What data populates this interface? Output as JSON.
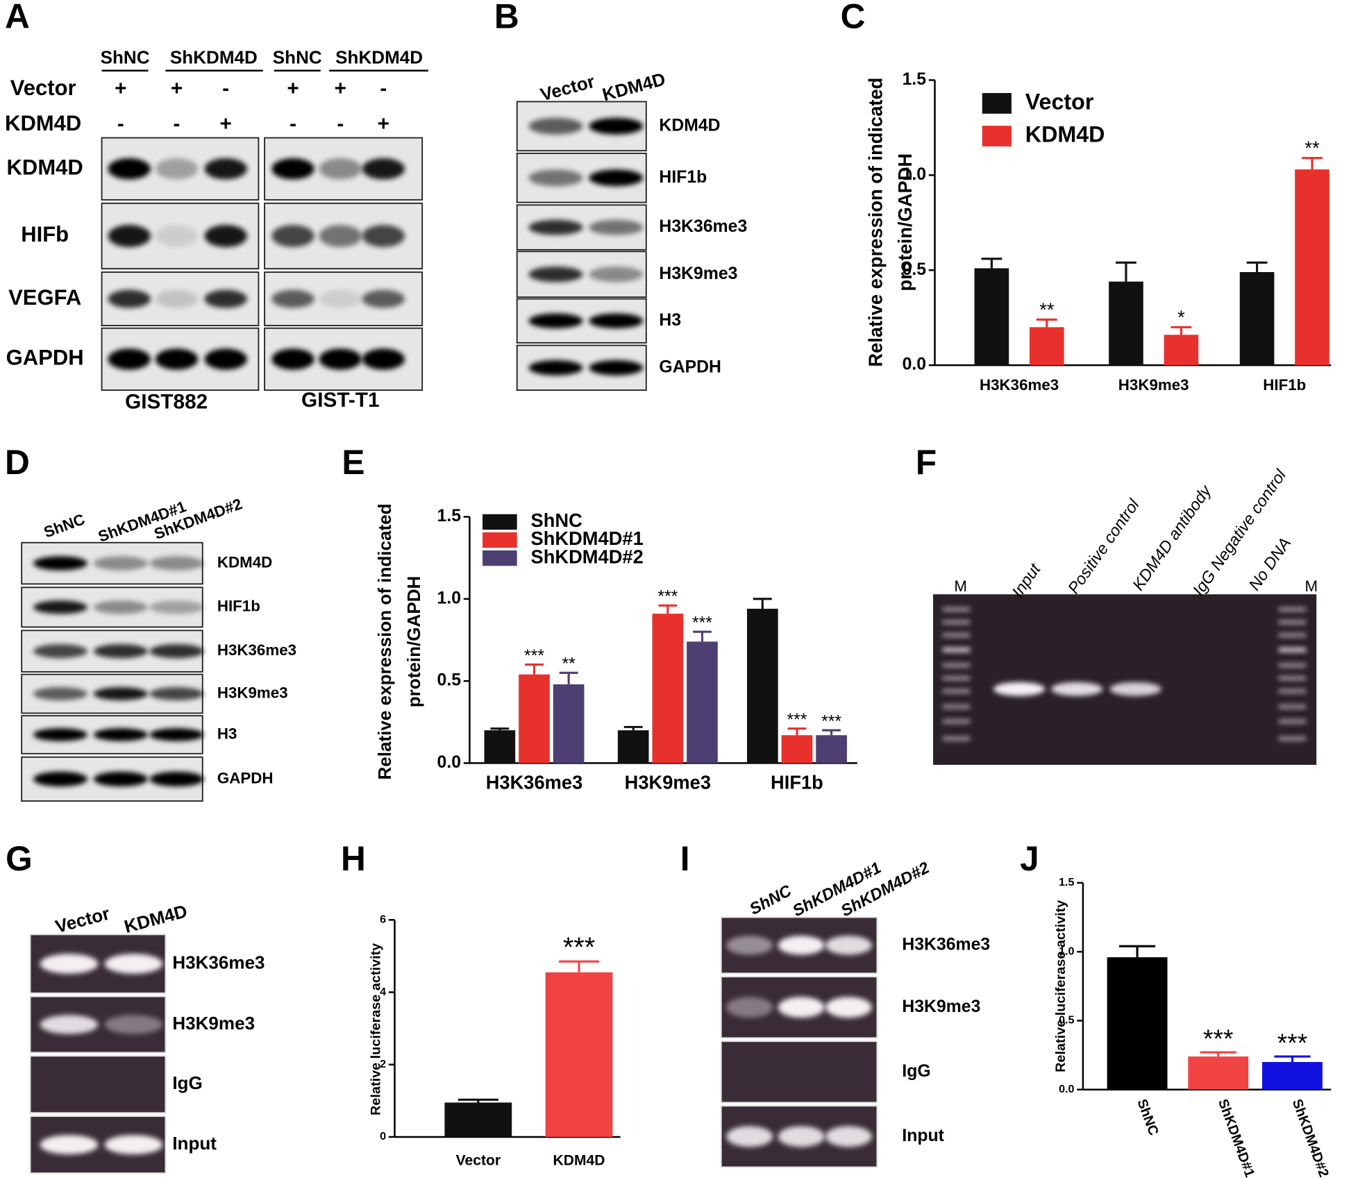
{
  "panel_labels": [
    "A",
    "B",
    "C",
    "D",
    "E",
    "F",
    "G",
    "H",
    "I",
    "J"
  ],
  "blots": {
    "A": {
      "headers": [
        "ShNC",
        "ShKDM4D",
        "ShNC",
        "ShKDM4D"
      ],
      "rows": [
        {
          "label": "Vector",
          "signs": [
            "+",
            "+",
            "-",
            "+",
            "+",
            "-"
          ]
        },
        {
          "label": "KDM4D",
          "signs": [
            "-",
            "-",
            "+",
            "-",
            "-",
            "+"
          ]
        }
      ],
      "blot_labels": [
        "KDM4D",
        "HIFb",
        "VEGFA",
        "GAPDH"
      ],
      "cell_lines": [
        "GIST882",
        "GIST-T1"
      ]
    },
    "B": {
      "lanes": [
        "Vector",
        "KDM4D"
      ],
      "blot_labels": [
        "KDM4D",
        "HIF1b",
        "H3K36me3",
        "H3K9me3",
        "H3",
        "GAPDH"
      ]
    },
    "D": {
      "lanes": [
        "ShNC",
        "ShKDM4D#1",
        "ShKDM4D#2"
      ],
      "blot_labels": [
        "KDM4D",
        "HIF1b",
        "H3K36me3",
        "H3K9me3",
        "H3",
        "GAPDH"
      ]
    },
    "F": {
      "markers": [
        "M",
        "M"
      ],
      "lanes": [
        "Input",
        "Positive control",
        "KDM4D antibody",
        "IgG Negative control",
        "No DNA"
      ]
    },
    "G": {
      "lanes": [
        "Vector",
        "KDM4D"
      ],
      "blot_labels": [
        "H3K36me3",
        "H3K9me3",
        "IgG",
        "Input"
      ]
    },
    "I": {
      "lanes": [
        "ShNC",
        "ShKDM4D#1",
        "ShKDM4D#2"
      ],
      "blot_labels": [
        "H3K36me3",
        "H3K9me3",
        "IgG",
        "Input"
      ]
    }
  },
  "chart_data": [
    {
      "type": "bar",
      "ylabel": [
        "Relative expression of indicated",
        "protein/GAPDH"
      ],
      "categories": [
        "H3K36me3",
        "H3K9me3",
        "HIF1b"
      ],
      "series": [
        {
          "name": "Vector",
          "color": "#111111",
          "values": [
            0.51,
            0.44,
            0.49
          ],
          "errors": [
            0.05,
            0.1,
            0.05
          ]
        },
        {
          "name": "KDM4D",
          "color": "#e8312c",
          "values": [
            0.2,
            0.16,
            1.03
          ],
          "errors": [
            0.04,
            0.04,
            0.06
          ],
          "annotations": [
            "**",
            "*",
            "**"
          ]
        }
      ],
      "ylim": [
        0,
        1.5
      ],
      "yticks": [
        {
          "value": 0,
          "label": "0.0"
        },
        0.5,
        {
          "value": 1,
          "label": "1.0"
        },
        1.5
      ]
    },
    {
      "type": "bar",
      "ylabel": [
        "Relative expression of indicated",
        "protein/GAPDH"
      ],
      "categories": [
        "H3K36me3",
        "H3K9me3",
        "HIF1b"
      ],
      "series": [
        {
          "name": "ShNC",
          "color": "#111111",
          "values": [
            0.2,
            0.2,
            0.94
          ],
          "errors": [
            0.01,
            0.02,
            0.06
          ]
        },
        {
          "name": "ShKDM4D#1",
          "color": "#e8312c",
          "values": [
            0.54,
            0.91,
            0.17
          ],
          "errors": [
            0.06,
            0.05,
            0.04
          ],
          "annotations": [
            "***",
            "***",
            "***"
          ]
        },
        {
          "name": "ShKDM4D#2",
          "color": "#4e3f72",
          "values": [
            0.48,
            0.74,
            0.17
          ],
          "errors": [
            0.07,
            0.06,
            0.03
          ],
          "annotations": [
            "**",
            "***",
            "***"
          ]
        }
      ],
      "ylim": [
        0,
        1.5
      ],
      "yticks": [
        {
          "value": 0,
          "label": "0.0"
        },
        0.5,
        {
          "value": 1,
          "label": "1.0"
        },
        1.5
      ]
    },
    {
      "type": "bar",
      "ylabel": [
        "Relative luciferase activity"
      ],
      "categories": [
        "Vector",
        "KDM4D"
      ],
      "values": [
        0.95,
        4.55
      ],
      "errors": [
        0.08,
        0.3
      ],
      "colors": [
        "#111111",
        "#f24343"
      ],
      "annotations": [
        null,
        "***"
      ],
      "ylim": [
        0,
        6
      ],
      "yticks": [
        0,
        2,
        4,
        6
      ]
    },
    {
      "type": "bar",
      "ylabel": [
        "Relative luciferase activity"
      ],
      "categories": [
        "ShNC",
        "ShKDM4D#1",
        "ShKDM4D#2"
      ],
      "values": [
        0.96,
        0.24,
        0.2
      ],
      "errors": [
        0.08,
        0.03,
        0.04
      ],
      "colors": [
        "#000000",
        "#f24343",
        "#1212e0"
      ],
      "annotations": [
        null,
        "***",
        "***"
      ],
      "ylim": [
        0,
        1.5
      ],
      "yticks": [
        {
          "value": 0,
          "label": "0.0"
        },
        0.5,
        {
          "value": 1,
          "label": "1.0"
        },
        1.5
      ]
    }
  ]
}
